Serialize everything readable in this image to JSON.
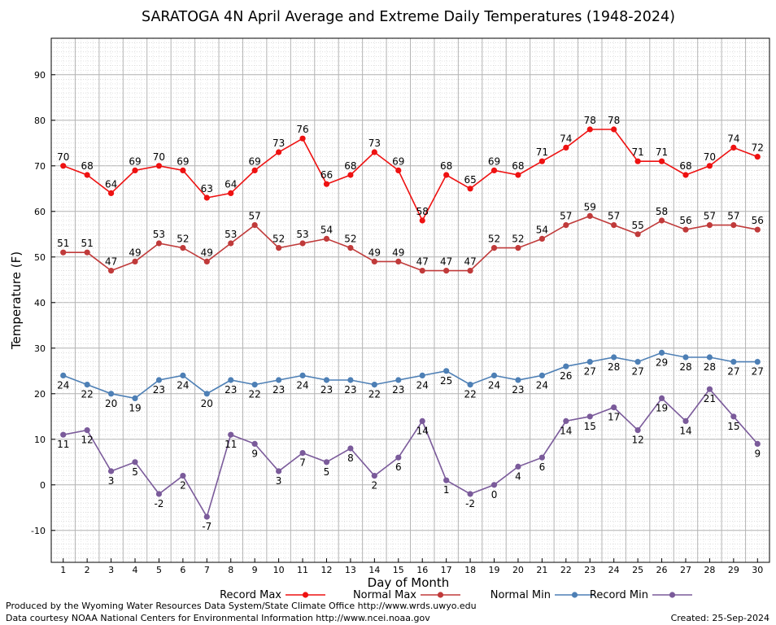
{
  "chart_data": {
    "type": "line",
    "title": "SARATOGA 4N April Average and Extreme Daily Temperatures (1948-2024)",
    "xlabel": "Day of Month",
    "ylabel": "Temperature (F)",
    "ylim": [
      -17,
      98
    ],
    "xlim": [
      0.5,
      30.5
    ],
    "y_ticks": [
      -10,
      0,
      10,
      20,
      30,
      40,
      50,
      60,
      70,
      80,
      90
    ],
    "x": [
      1,
      2,
      3,
      4,
      5,
      6,
      7,
      8,
      9,
      10,
      11,
      12,
      13,
      14,
      15,
      16,
      17,
      18,
      19,
      20,
      21,
      22,
      23,
      24,
      25,
      26,
      27,
      28,
      29,
      30
    ],
    "grid": true,
    "legend_position": "bottom",
    "series": [
      {
        "name": "Record Max",
        "color": "#ee1111",
        "label_position": "above",
        "values": [
          70,
          68,
          64,
          69,
          70,
          69,
          63,
          64,
          69,
          73,
          76,
          66,
          68,
          73,
          69,
          58,
          68,
          65,
          69,
          68,
          71,
          74,
          78,
          78,
          71,
          71,
          68,
          70,
          74,
          72
        ]
      },
      {
        "name": "Normal Max",
        "color": "#c03a3a",
        "label_position": "above",
        "values": [
          51,
          51,
          47,
          49,
          53,
          52,
          49,
          53,
          57,
          52,
          53,
          54,
          52,
          49,
          49,
          47,
          47,
          47,
          52,
          52,
          54,
          57,
          59,
          57,
          55,
          58,
          56,
          57,
          57,
          56
        ]
      },
      {
        "name": "Normal Min",
        "color": "#4d7fb5",
        "label_position": "below",
        "values": [
          24,
          22,
          20,
          19,
          23,
          24,
          20,
          23,
          22,
          23,
          24,
          23,
          23,
          22,
          23,
          24,
          25,
          22,
          24,
          23,
          24,
          26,
          27,
          28,
          27,
          29,
          28,
          28,
          27,
          27
        ]
      },
      {
        "name": "Record Min",
        "color": "#7a5a9a",
        "label_position": "below",
        "values": [
          11,
          12,
          3,
          5,
          -2,
          2,
          -7,
          11,
          9,
          3,
          7,
          5,
          8,
          2,
          6,
          14,
          1,
          -2,
          0,
          4,
          6,
          14,
          15,
          17,
          12,
          19,
          14,
          21,
          15,
          9
        ]
      }
    ]
  },
  "footer": {
    "produced_by": "Produced by the Wyoming Water Resources Data System/State Climate Office http://www.wrds.uwyo.edu",
    "data_courtesy": "Data courtesy NOAA National Centers for Environmental Information http://www.ncei.noaa.gov",
    "created": "Created:  25-Sep-2024"
  }
}
